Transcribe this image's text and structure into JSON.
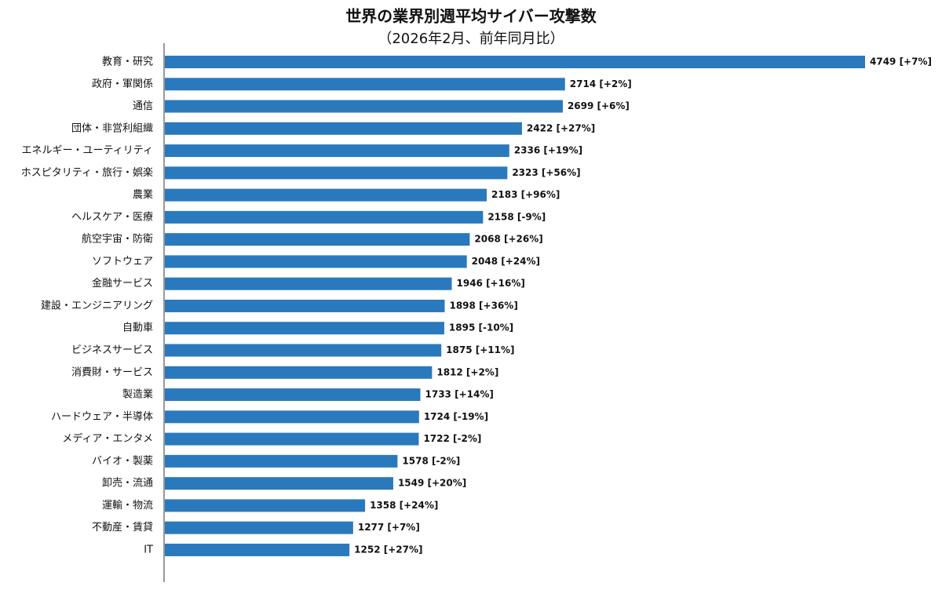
{
  "chart_data": {
    "type": "barh",
    "title": "世界の業界別週平均サイバー攻撃数",
    "subtitle": "（2026年2月、前年同月比）",
    "color": "#2a79bd",
    "categories": [
      "教育・研究",
      "政府・軍関係",
      "通信",
      "団体・非営利組織",
      "エネルギー・ユーティリティ",
      "ホスピタリティ・旅行・娯楽",
      "農業",
      "ヘルスケア・医療",
      "航空宇宙・防衛",
      "ソフトウェア",
      "金融サービス",
      "建設・エンジニアリング",
      "自動車",
      "ビジネスサービス",
      "消費財・サービス",
      "製造業",
      "ハードウェア・半導体",
      "メディア・エンタメ",
      "バイオ・製薬",
      "卸売・流通",
      "運輸・物流",
      "不動産・賃貸",
      "IT"
    ],
    "values": [
      4749,
      2714,
      2699,
      2422,
      2336,
      2323,
      2183,
      2158,
      2068,
      2048,
      1946,
      1898,
      1895,
      1875,
      1812,
      1733,
      1724,
      1722,
      1578,
      1549,
      1358,
      1277,
      1252
    ],
    "value_labels": [
      "4749 [+7%]",
      "2714 [+2%]",
      "2699 [+6%]",
      "2422 [+27%]",
      "2336 [+19%]",
      "2323 [+56%]",
      "2183 [+96%]",
      "2158 [-9%]",
      "2068 [+26%]",
      "2048 [+24%]",
      "1946 [+16%]",
      "1898 [+36%]",
      "1895 [-10%]",
      "1875 [+11%]",
      "1812 [+2%]",
      "1733 [+14%]",
      "1724 [-19%]",
      "1722 [-2%]",
      "1578 [-2%]",
      "1549 [+20%]",
      "1358 [+24%]",
      "1277 [+7%]",
      "1252 [+27%]"
    ]
  }
}
